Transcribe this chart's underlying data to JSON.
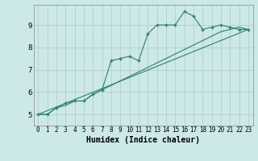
{
  "xlabel": "Humidex (Indice chaleur)",
  "ylabel": "",
  "bg_color": "#cce8e8",
  "grid_color": "#b0c8c8",
  "line_color": "#2e7f6e",
  "xlim": [
    -0.5,
    23.5
  ],
  "ylim": [
    4.5,
    9.9
  ],
  "xticks": [
    0,
    1,
    2,
    3,
    4,
    5,
    6,
    7,
    8,
    9,
    10,
    11,
    12,
    13,
    14,
    15,
    16,
    17,
    18,
    19,
    20,
    21,
    22,
    23
  ],
  "yticks": [
    5,
    6,
    7,
    8,
    9
  ],
  "line1_x": [
    0,
    1,
    2,
    3,
    4,
    5,
    6,
    7,
    8,
    9,
    10,
    11,
    12,
    13,
    14,
    15,
    16,
    17,
    18,
    19,
    20,
    21,
    22,
    23
  ],
  "line1_y": [
    5.0,
    5.0,
    5.3,
    5.5,
    5.6,
    5.6,
    5.9,
    6.1,
    7.4,
    7.5,
    7.6,
    7.4,
    8.6,
    9.0,
    9.0,
    9.0,
    9.6,
    9.4,
    8.8,
    8.9,
    9.0,
    8.9,
    8.8,
    8.8
  ],
  "line2_x": [
    0,
    1,
    2,
    3,
    4,
    5,
    6,
    7,
    8,
    9,
    10,
    11,
    12,
    13,
    14,
    15,
    16,
    17,
    18,
    19,
    20,
    21,
    22,
    23
  ],
  "line2_y": [
    5.0,
    5.0,
    5.3,
    5.4,
    5.6,
    5.6,
    5.9,
    6.1,
    6.3,
    6.5,
    6.7,
    6.9,
    7.1,
    7.3,
    7.5,
    7.7,
    7.9,
    8.1,
    8.3,
    8.5,
    8.7,
    8.8,
    8.9,
    8.8
  ],
  "line3_x": [
    0,
    23
  ],
  "line3_y": [
    5.0,
    8.8
  ]
}
